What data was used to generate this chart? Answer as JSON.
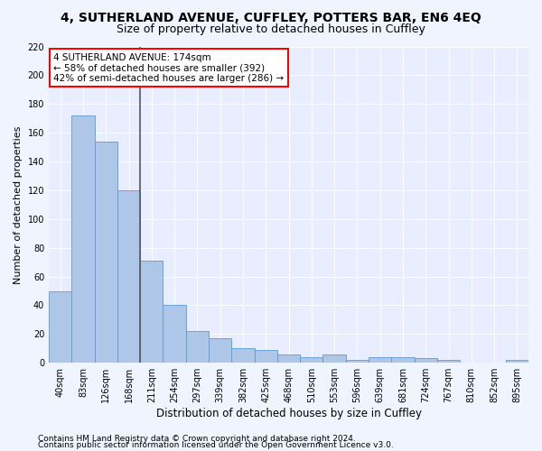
{
  "title1": "4, SUTHERLAND AVENUE, CUFFLEY, POTTERS BAR, EN6 4EQ",
  "title2": "Size of property relative to detached houses in Cuffley",
  "xlabel": "Distribution of detached houses by size in Cuffley",
  "ylabel": "Number of detached properties",
  "categories": [
    "40sqm",
    "83sqm",
    "126sqm",
    "168sqm",
    "211sqm",
    "254sqm",
    "297sqm",
    "339sqm",
    "382sqm",
    "425sqm",
    "468sqm",
    "510sqm",
    "553sqm",
    "596sqm",
    "639sqm",
    "681sqm",
    "724sqm",
    "767sqm",
    "810sqm",
    "852sqm",
    "895sqm"
  ],
  "values": [
    50,
    172,
    154,
    120,
    71,
    40,
    22,
    17,
    10,
    9,
    6,
    4,
    6,
    2,
    4,
    4,
    3,
    2,
    0,
    0,
    2
  ],
  "bar_color": "#aec6e8",
  "bar_edge_color": "#5b9bd5",
  "vline_x": 3.5,
  "vline_color": "#555555",
  "annotation_text_line1": "4 SUTHERLAND AVENUE: 174sqm",
  "annotation_text_line2": "← 58% of detached houses are smaller (392)",
  "annotation_text_line3": "42% of semi-detached houses are larger (286) →",
  "ylim": [
    0,
    220
  ],
  "yticks": [
    0,
    20,
    40,
    60,
    80,
    100,
    120,
    140,
    160,
    180,
    200,
    220
  ],
  "footer1": "Contains HM Land Registry data © Crown copyright and database right 2024.",
  "footer2": "Contains public sector information licensed under the Open Government Licence v3.0.",
  "bg_color": "#e8eeff",
  "grid_color": "#ffffff",
  "fig_bg_color": "#f0f4ff",
  "title1_fontsize": 10,
  "title2_fontsize": 9,
  "xlabel_fontsize": 8.5,
  "ylabel_fontsize": 8,
  "tick_fontsize": 7,
  "annot_fontsize": 7.5,
  "footer_fontsize": 6.5
}
